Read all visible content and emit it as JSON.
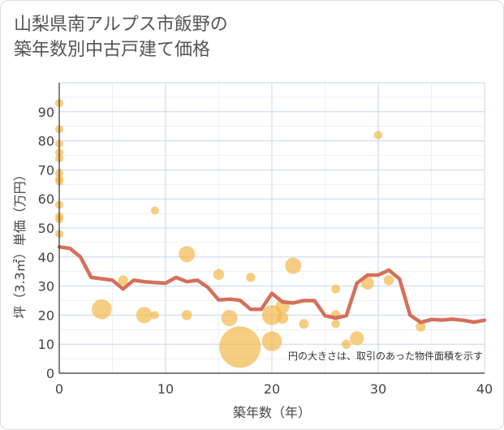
{
  "title_lines": [
    "山梨県南アルプス市飯野の",
    "築年数別中古戸建て価格"
  ],
  "chart_data": {
    "type": "scatter",
    "title": "山梨県南アルプス市飯野の築年数別中古戸建て価格",
    "xlabel": "築年数（年）",
    "ylabel": "坪（3.3㎡）単価（万円）",
    "xlim": [
      0,
      40
    ],
    "ylim": [
      0,
      100
    ],
    "xticks": [
      0,
      10,
      20,
      30,
      40
    ],
    "yticks": [
      0,
      10,
      20,
      30,
      40,
      50,
      60,
      70,
      80,
      90
    ],
    "annotation": "円の大きさは、取引のあった物件面積を示す",
    "colors": {
      "bubble": "#f2b84b",
      "line": "#d4705a",
      "grid": "#c9d6e6",
      "plot_bg": "#ffffff"
    },
    "bubbles": [
      {
        "x": 0,
        "y": 93,
        "size": 1
      },
      {
        "x": 0,
        "y": 84,
        "size": 1
      },
      {
        "x": 0,
        "y": 79,
        "size": 1
      },
      {
        "x": 0,
        "y": 76,
        "size": 1
      },
      {
        "x": 0,
        "y": 74,
        "size": 1
      },
      {
        "x": 0,
        "y": 69,
        "size": 1
      },
      {
        "x": 0,
        "y": 67,
        "size": 1
      },
      {
        "x": 0,
        "y": 66,
        "size": 1
      },
      {
        "x": 0,
        "y": 58,
        "size": 1
      },
      {
        "x": 0,
        "y": 54,
        "size": 1
      },
      {
        "x": 0,
        "y": 53,
        "size": 1
      },
      {
        "x": 0,
        "y": 48,
        "size": 1
      },
      {
        "x": 4,
        "y": 22,
        "size": 6
      },
      {
        "x": 6,
        "y": 32,
        "size": 1.5
      },
      {
        "x": 8,
        "y": 20,
        "size": 4
      },
      {
        "x": 9,
        "y": 56,
        "size": 1
      },
      {
        "x": 9,
        "y": 20,
        "size": 1
      },
      {
        "x": 12,
        "y": 41,
        "size": 4
      },
      {
        "x": 12,
        "y": 20,
        "size": 1.6
      },
      {
        "x": 15,
        "y": 34,
        "size": 1.8
      },
      {
        "x": 16,
        "y": 19,
        "size": 4
      },
      {
        "x": 17,
        "y": 9,
        "size": 26
      },
      {
        "x": 18,
        "y": 33,
        "size": 1.3
      },
      {
        "x": 20,
        "y": 20,
        "size": 6
      },
      {
        "x": 20,
        "y": 11,
        "size": 6
      },
      {
        "x": 21,
        "y": 23,
        "size": 3
      },
      {
        "x": 21,
        "y": 19,
        "size": 2
      },
      {
        "x": 22,
        "y": 37,
        "size": 4
      },
      {
        "x": 23,
        "y": 17,
        "size": 1.4
      },
      {
        "x": 26,
        "y": 29,
        "size": 1.2
      },
      {
        "x": 26,
        "y": 20,
        "size": 1.5
      },
      {
        "x": 26,
        "y": 17,
        "size": 1.1
      },
      {
        "x": 27,
        "y": 10,
        "size": 1.3
      },
      {
        "x": 28,
        "y": 12,
        "size": 3
      },
      {
        "x": 29,
        "y": 31,
        "size": 2.5
      },
      {
        "x": 30,
        "y": 82,
        "size": 1.1
      },
      {
        "x": 31,
        "y": 32,
        "size": 1.6
      },
      {
        "x": 34,
        "y": 16,
        "size": 1.5
      }
    ],
    "trend_line": {
      "x": [
        0,
        1,
        2,
        3,
        4,
        5,
        6,
        7,
        8,
        9,
        10,
        11,
        12,
        13,
        14,
        15,
        16,
        17,
        18,
        19,
        20,
        21,
        22,
        23,
        24,
        25,
        26,
        27,
        28,
        29,
        30,
        31,
        32,
        33,
        34,
        35,
        36,
        37,
        38,
        39,
        40
      ],
      "y": [
        43.5,
        43,
        40,
        33,
        32.5,
        32,
        29,
        32,
        31.5,
        31.2,
        31,
        33,
        31.5,
        32,
        29.5,
        25.2,
        25.5,
        25.1,
        22,
        22,
        27.5,
        24.5,
        24.2,
        25,
        25,
        19.8,
        19,
        19.8,
        31,
        33.8,
        33.8,
        35.5,
        32.5,
        20,
        17.5,
        18.5,
        18.3,
        18.6,
        18.2,
        17.6,
        18.2
      ]
    }
  }
}
